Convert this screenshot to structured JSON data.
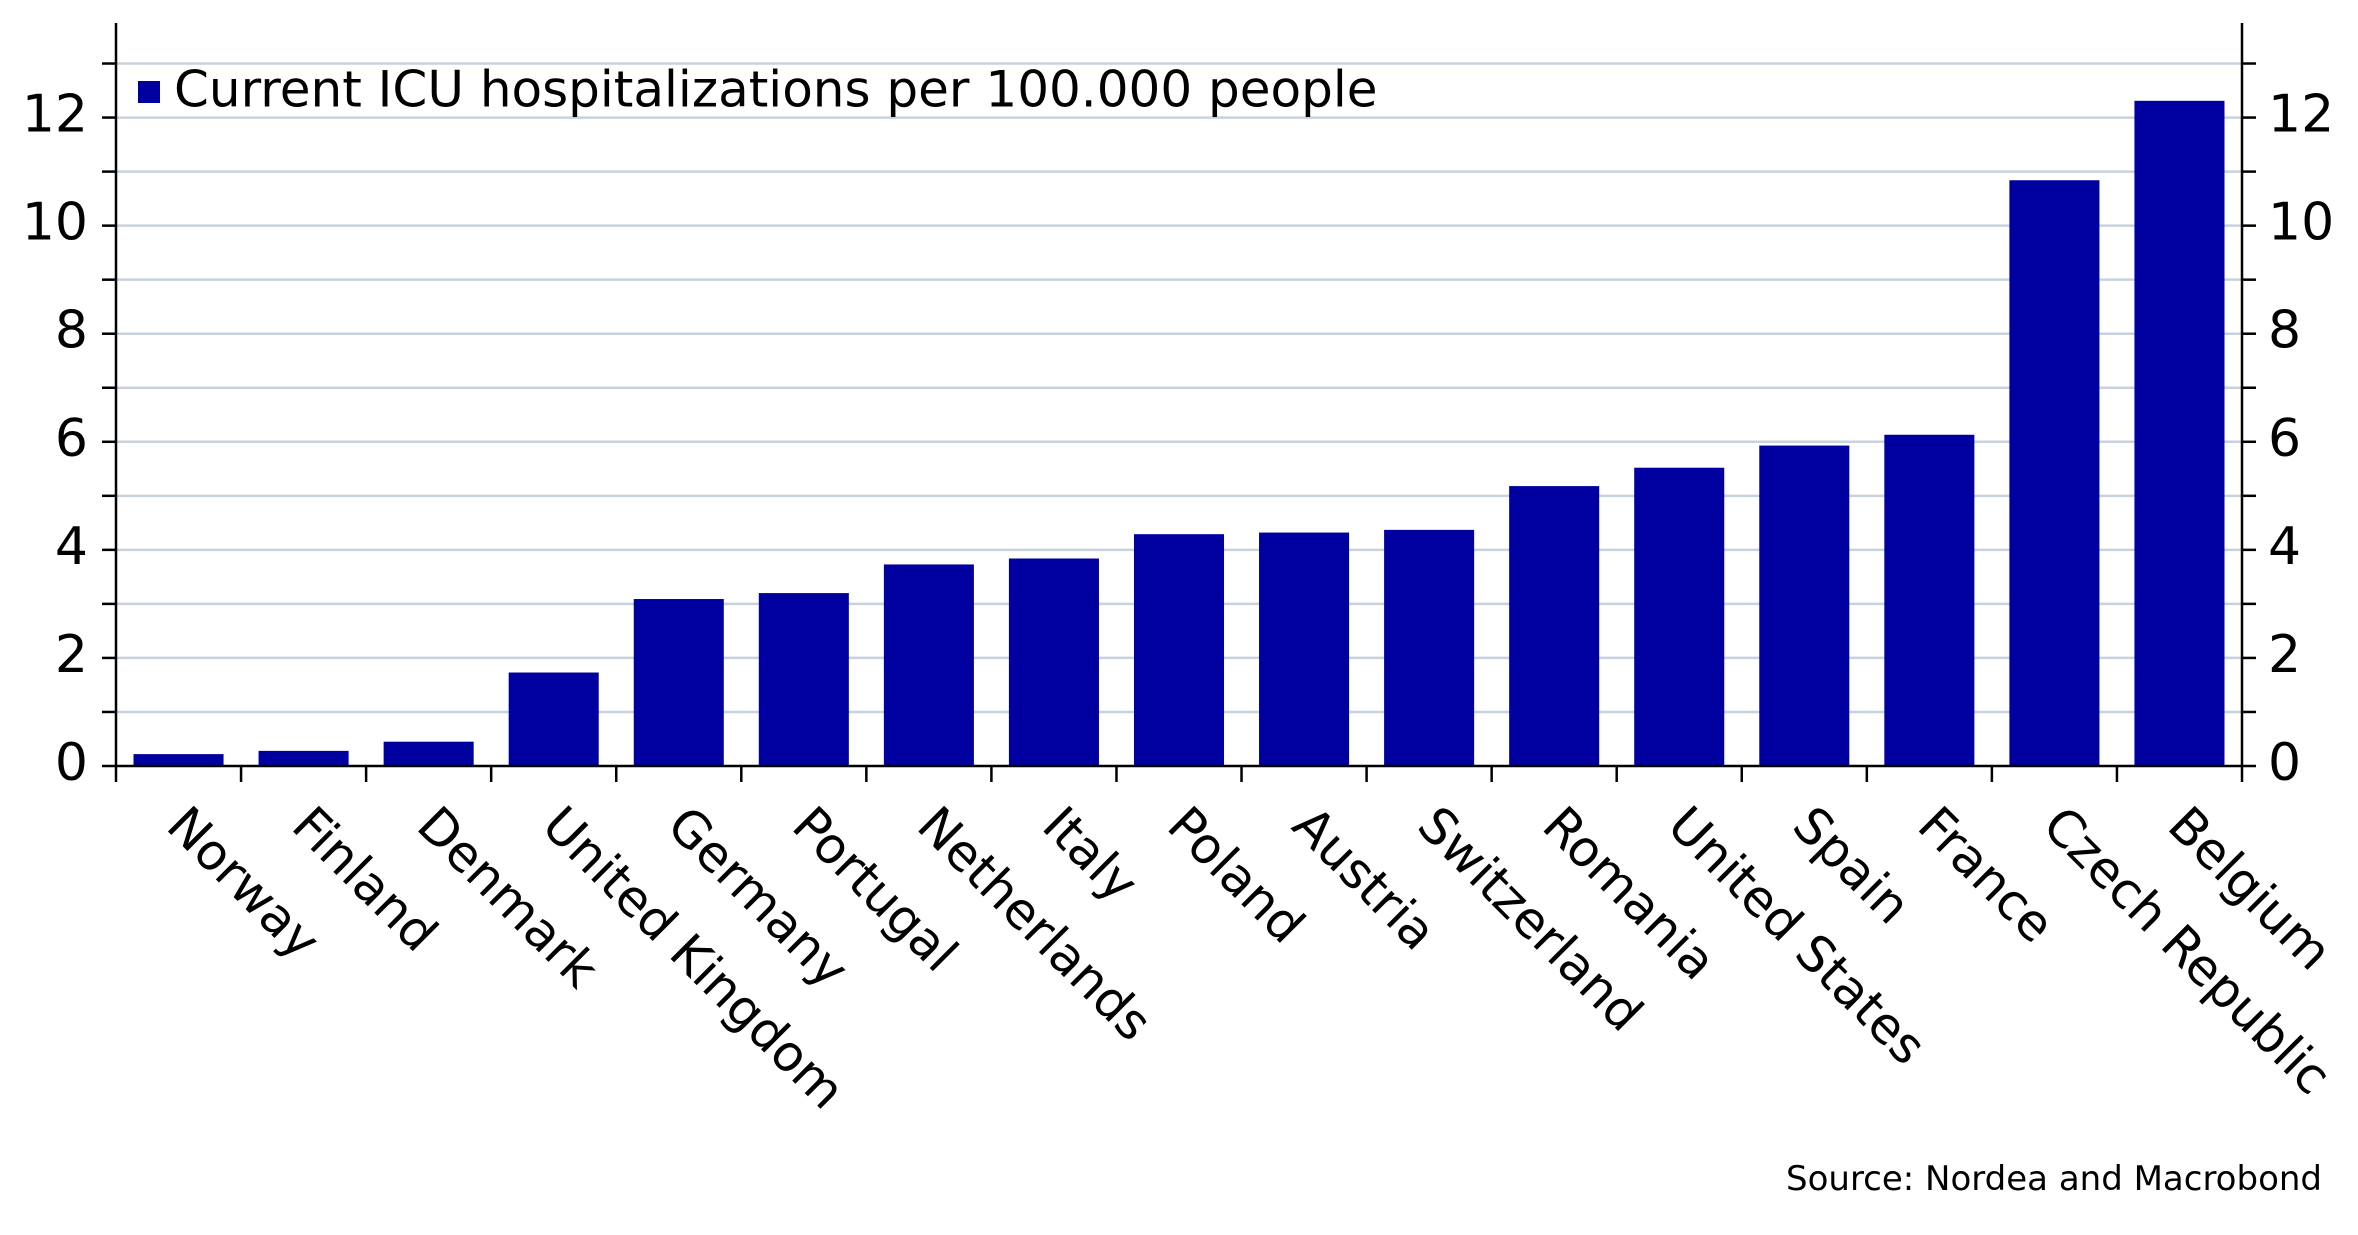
{
  "chart_data": {
    "type": "bar",
    "legend_label": "Current ICU hospitalizations per 100.000 people",
    "source": "Source: Nordea and Macrobond",
    "categories": [
      "Norway",
      "Finland",
      "Denmark",
      "United Kingdom",
      "Germany",
      "Portugal",
      "Netherlands",
      "Italy",
      "Poland",
      "Austria",
      "Switzerland",
      "Romania",
      "United States",
      "Spain",
      "France",
      "Czech Republic",
      "Belgium"
    ],
    "values": [
      0.22,
      0.28,
      0.45,
      1.73,
      3.09,
      3.2,
      3.73,
      3.84,
      4.29,
      4.32,
      4.37,
      5.18,
      5.52,
      5.93,
      6.13,
      10.84,
      12.31
    ],
    "color": "#0000a0",
    "ylim": [
      0,
      13.75
    ],
    "yticks": [
      0,
      2,
      4,
      6,
      8,
      10,
      12
    ],
    "minor_yticks": [
      1,
      3,
      5,
      7,
      9,
      11,
      13
    ],
    "grid": true
  }
}
